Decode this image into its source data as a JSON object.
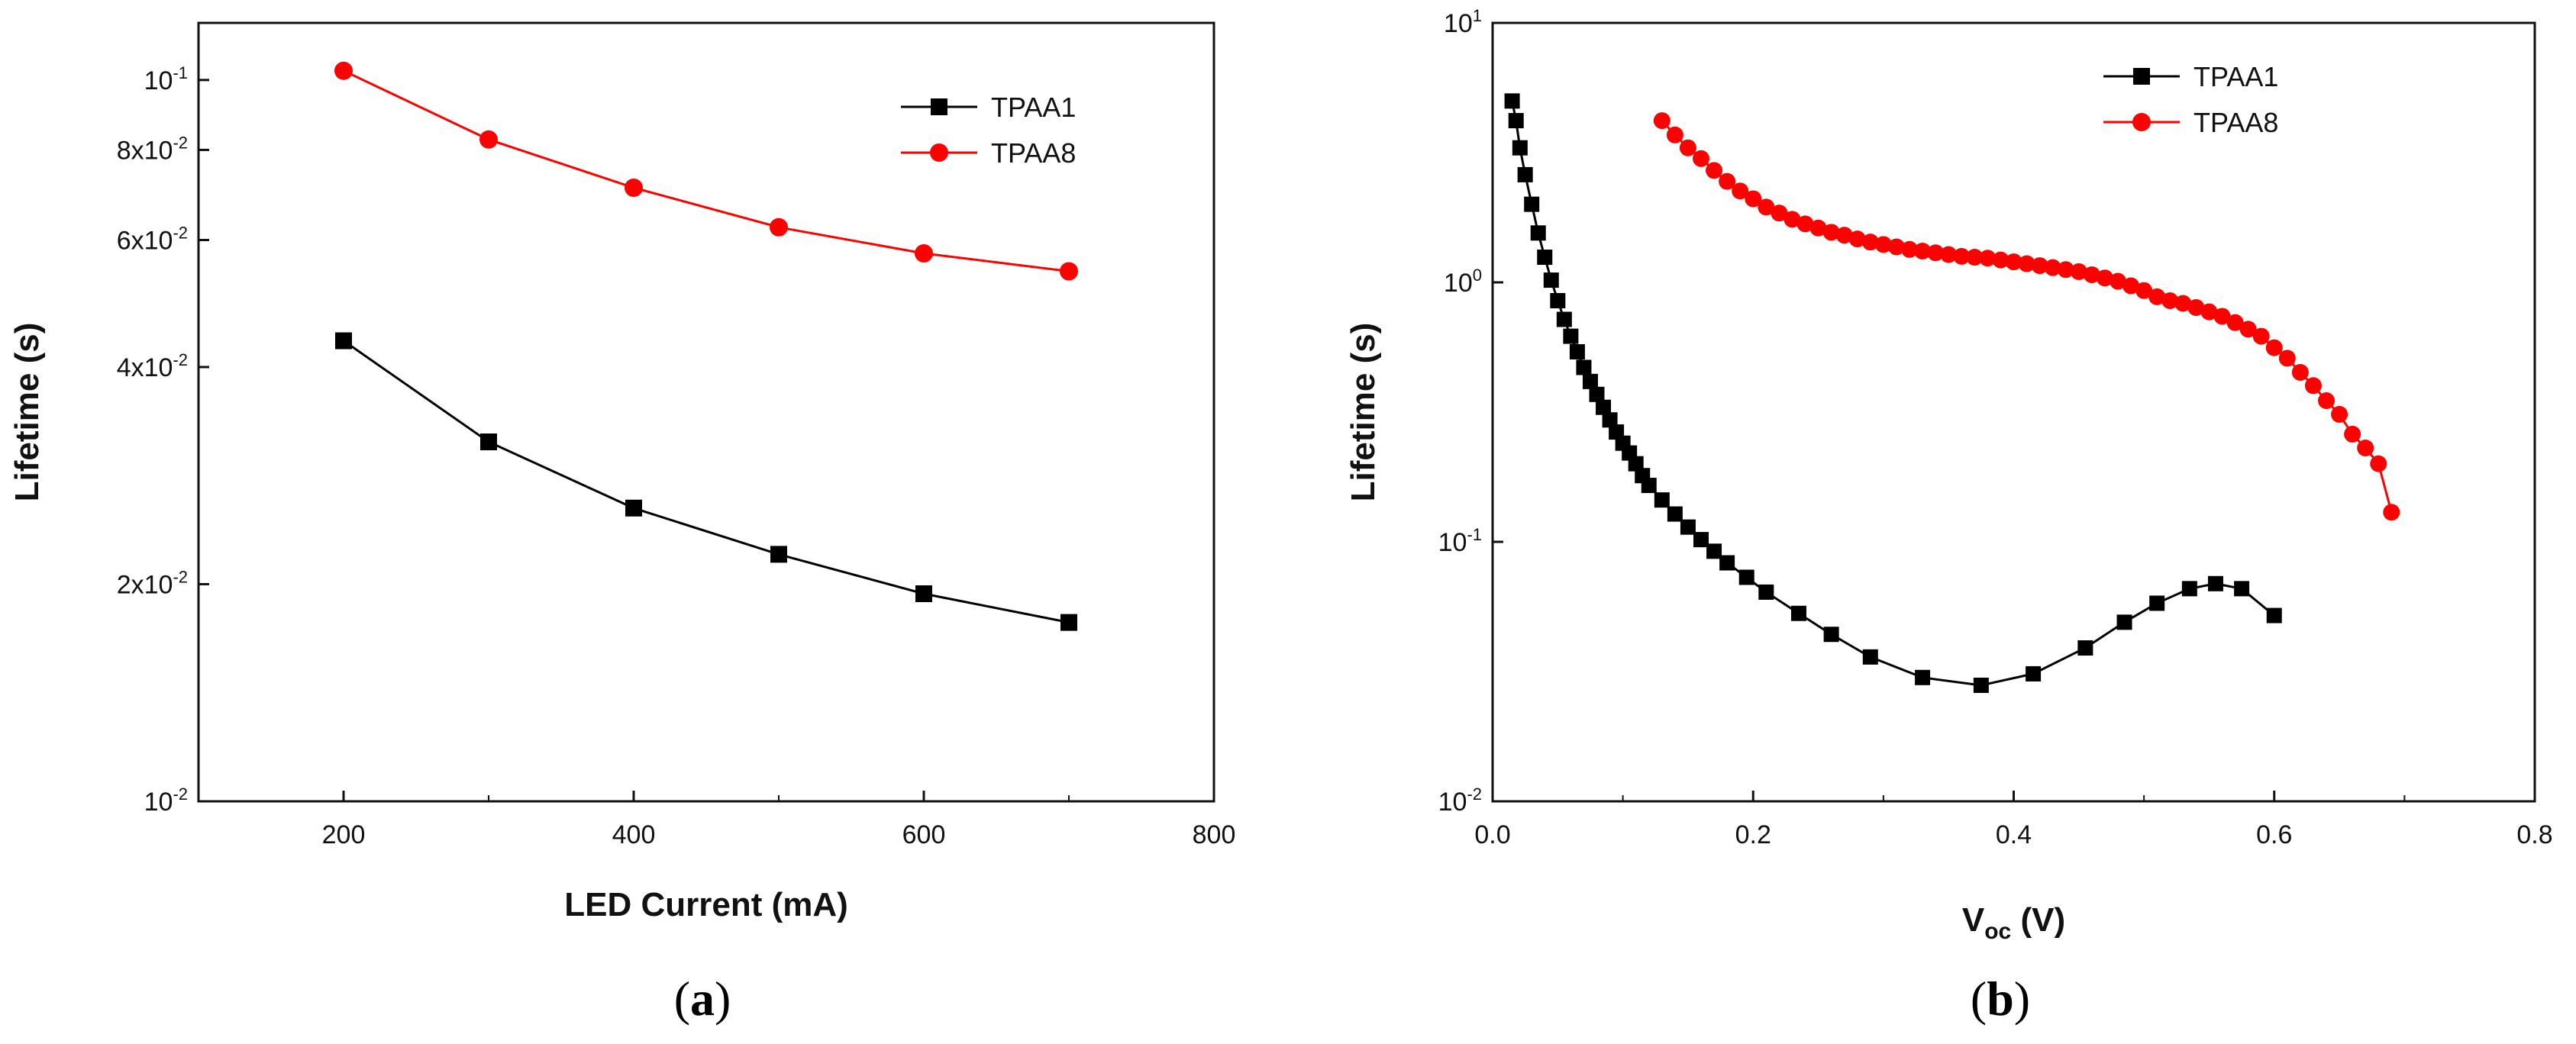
{
  "chart_data": [
    {
      "type": "line",
      "panel_label_open": "(",
      "panel_label_letter": "a",
      "panel_label_close": ")",
      "xlabel": "LED Current (mA)",
      "ylabel": "Lifetime (s)",
      "xlim": [
        100,
        800
      ],
      "ylim": [
        0.01,
        0.12
      ],
      "yscale": "log",
      "x_ticks": [
        200,
        400,
        600,
        800
      ],
      "x_tick_labels": [
        "200",
        "400",
        "600",
        "800"
      ],
      "y_ticks": [
        {
          "value": 0.1,
          "base": "10",
          "exp": "-1"
        },
        {
          "value": 0.08,
          "base": "8x10",
          "exp": "-2"
        },
        {
          "value": 0.06,
          "base": "6x10",
          "exp": "-2"
        },
        {
          "value": 0.04,
          "base": "4x10",
          "exp": "-2"
        },
        {
          "value": 0.02,
          "base": "2x10",
          "exp": "-2"
        },
        {
          "value": 0.01,
          "base": "10",
          "exp": "-2"
        }
      ],
      "legend_position": "top-right",
      "series": [
        {
          "name": "TPAA1",
          "color": "#000000",
          "marker": "square",
          "x": [
            200,
            300,
            400,
            500,
            600,
            700
          ],
          "y": [
            0.0435,
            0.0315,
            0.0255,
            0.022,
            0.0194,
            0.0177
          ]
        },
        {
          "name": "TPAA8",
          "color": "#ff0000",
          "marker": "circle",
          "x": [
            200,
            300,
            400,
            500,
            600,
            700
          ],
          "y": [
            0.103,
            0.0827,
            0.0709,
            0.0625,
            0.0575,
            0.0543
          ]
        }
      ]
    },
    {
      "type": "line",
      "panel_label_open": "(",
      "panel_label_letter": "b",
      "panel_label_close": ")",
      "xlabel_main": "V",
      "xlabel_sub": "oc",
      "xlabel_unit": " (V)",
      "ylabel": "Lifetime (s)",
      "xlim": [
        0.0,
        0.8
      ],
      "ylim": [
        0.01,
        10
      ],
      "yscale": "log",
      "x_ticks": [
        0.0,
        0.2,
        0.4,
        0.6,
        0.8
      ],
      "x_tick_labels": [
        "0.0",
        "0.2",
        "0.4",
        "0.6",
        "0.8"
      ],
      "y_ticks": [
        {
          "value": 10,
          "base": "10",
          "exp": "1"
        },
        {
          "value": 1,
          "base": "10",
          "exp": "0"
        },
        {
          "value": 0.1,
          "base": "10",
          "exp": "-1"
        },
        {
          "value": 0.01,
          "base": "10",
          "exp": "-2"
        }
      ],
      "legend_position": "top-right",
      "series": [
        {
          "name": "TPAA1",
          "color": "#000000",
          "marker": "square",
          "x": [
            0.015,
            0.018,
            0.021,
            0.025,
            0.03,
            0.035,
            0.04,
            0.045,
            0.05,
            0.055,
            0.06,
            0.065,
            0.07,
            0.075,
            0.08,
            0.085,
            0.09,
            0.095,
            0.1,
            0.105,
            0.11,
            0.115,
            0.12,
            0.13,
            0.14,
            0.15,
            0.16,
            0.17,
            0.18,
            0.195,
            0.21,
            0.235,
            0.26,
            0.29,
            0.33,
            0.375,
            0.415,
            0.455,
            0.485,
            0.51,
            0.535,
            0.555,
            0.575,
            0.6
          ],
          "y": [
            5.0,
            4.2,
            3.3,
            2.6,
            2.0,
            1.55,
            1.25,
            1.02,
            0.85,
            0.72,
            0.62,
            0.54,
            0.47,
            0.415,
            0.37,
            0.33,
            0.295,
            0.265,
            0.24,
            0.22,
            0.2,
            0.18,
            0.165,
            0.145,
            0.128,
            0.114,
            0.102,
            0.092,
            0.083,
            0.073,
            0.064,
            0.053,
            0.044,
            0.036,
            0.03,
            0.028,
            0.031,
            0.039,
            0.049,
            0.058,
            0.066,
            0.069,
            0.066,
            0.052
          ]
        },
        {
          "name": "TPAA8",
          "color": "#ff0000",
          "marker": "circle",
          "x": [
            0.13,
            0.14,
            0.15,
            0.16,
            0.17,
            0.18,
            0.19,
            0.2,
            0.21,
            0.22,
            0.23,
            0.24,
            0.25,
            0.26,
            0.27,
            0.28,
            0.29,
            0.3,
            0.31,
            0.32,
            0.33,
            0.34,
            0.35,
            0.36,
            0.37,
            0.38,
            0.39,
            0.4,
            0.41,
            0.42,
            0.43,
            0.44,
            0.45,
            0.46,
            0.47,
            0.48,
            0.49,
            0.5,
            0.51,
            0.52,
            0.53,
            0.54,
            0.55,
            0.56,
            0.57,
            0.58,
            0.59,
            0.6,
            0.61,
            0.62,
            0.63,
            0.64,
            0.65,
            0.66,
            0.67,
            0.68,
            0.69
          ],
          "y": [
            4.2,
            3.7,
            3.3,
            3.0,
            2.7,
            2.45,
            2.25,
            2.1,
            1.95,
            1.85,
            1.75,
            1.68,
            1.62,
            1.56,
            1.52,
            1.47,
            1.43,
            1.4,
            1.37,
            1.34,
            1.32,
            1.3,
            1.28,
            1.26,
            1.25,
            1.24,
            1.22,
            1.2,
            1.18,
            1.16,
            1.14,
            1.12,
            1.1,
            1.07,
            1.04,
            1.01,
            0.97,
            0.93,
            0.88,
            0.85,
            0.83,
            0.8,
            0.77,
            0.74,
            0.7,
            0.66,
            0.62,
            0.56,
            0.51,
            0.45,
            0.4,
            0.35,
            0.31,
            0.26,
            0.23,
            0.2,
            0.13
          ]
        }
      ]
    }
  ]
}
